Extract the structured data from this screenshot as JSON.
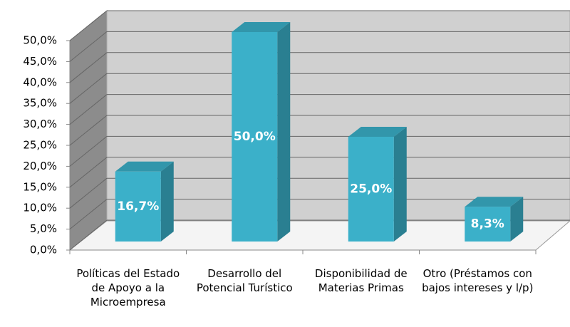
{
  "chart_data": {
    "type": "bar3d",
    "categories": [
      "Políticas del Estado de Apoyo a la Microempresa",
      "Desarrollo del Potencial Turístico",
      "Disponibilidad de Materias Primas",
      "Otro (Préstamos con bajos intereses y l/p)"
    ],
    "values": [
      16.7,
      50,
      25,
      8.3
    ],
    "value_labels": [
      "16,7%",
      "50,0%",
      "25,0%",
      "8,3%"
    ],
    "color": "#3bb0c9",
    "ylim": [
      0,
      50
    ],
    "yticks": [
      {
        "value": 0,
        "label": "0,0%"
      },
      {
        "value": 5,
        "label": "5,0%"
      },
      {
        "value": 10,
        "label": "10,0%"
      },
      {
        "value": 15,
        "label": "15,0%"
      },
      {
        "value": 20,
        "label": "20,0%"
      },
      {
        "value": 25,
        "label": "25,0%"
      },
      {
        "value": 30,
        "label": "30,0%"
      },
      {
        "value": 35,
        "label": "35,0%"
      },
      {
        "value": 40,
        "label": "40,0%"
      },
      {
        "value": 45,
        "label": "45,0%"
      },
      {
        "value": 50,
        "label": "50,0%"
      }
    ],
    "grid": true
  }
}
